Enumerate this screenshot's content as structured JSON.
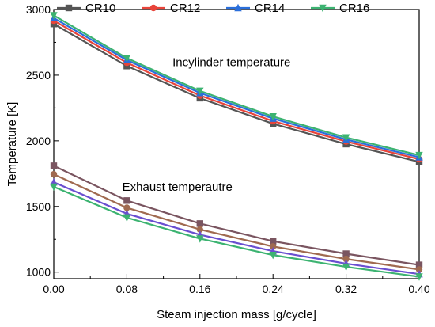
{
  "chart_data": {
    "type": "line",
    "xlabel": "Steam injection mass [g/cycle]",
    "ylabel": "Temperature [K]",
    "xlim": [
      0.0,
      0.4
    ],
    "ylim": [
      950,
      3000
    ],
    "x_ticks": [
      "0.00",
      "0.08",
      "0.16",
      "0.24",
      "0.32",
      "0.40"
    ],
    "y_ticks": [
      "1000",
      "1500",
      "2000",
      "2500",
      "3000"
    ],
    "x": [
      0.0,
      0.08,
      0.16,
      0.24,
      0.32,
      0.4
    ],
    "grid": false,
    "legend_position": "top",
    "annotations": [
      {
        "text": "Incylinder temperature",
        "x": 0.13,
        "y": 2570
      },
      {
        "text": "Exhaust temperautre",
        "x": 0.075,
        "y": 1620
      }
    ],
    "series": [
      {
        "name": "CR10",
        "group": "incylinder",
        "color": "#555555",
        "marker": "square",
        "values": [
          2890,
          2570,
          2325,
          2130,
          1975,
          1840
        ]
      },
      {
        "name": "CR12",
        "group": "incylinder",
        "color": "#e8443a",
        "marker": "circle",
        "values": [
          2915,
          2595,
          2345,
          2150,
          1995,
          1860
        ]
      },
      {
        "name": "CR14",
        "group": "incylinder",
        "color": "#2a6fdb",
        "marker": "triangle",
        "values": [
          2935,
          2615,
          2365,
          2170,
          2010,
          1875
        ]
      },
      {
        "name": "CR16",
        "group": "incylinder",
        "color": "#3cb371",
        "marker": "triangle-down",
        "values": [
          2955,
          2630,
          2380,
          2185,
          2025,
          1890
        ]
      },
      {
        "name": "CR10",
        "group": "exhaust",
        "color": "#7a5560",
        "marker": "square",
        "values": [
          1810,
          1545,
          1370,
          1235,
          1140,
          1055
        ]
      },
      {
        "name": "CR12",
        "group": "exhaust",
        "color": "#a06a50",
        "marker": "circle",
        "values": [
          1745,
          1490,
          1325,
          1195,
          1100,
          1020
        ]
      },
      {
        "name": "CR14",
        "group": "exhaust",
        "color": "#6a4fd0",
        "marker": "triangle",
        "values": [
          1685,
          1445,
          1285,
          1160,
          1065,
          985
        ]
      },
      {
        "name": "CR16",
        "group": "exhaust",
        "color": "#3cb371",
        "marker": "triangle-down",
        "values": [
          1650,
          1415,
          1255,
          1130,
          1040,
          965
        ]
      }
    ]
  }
}
